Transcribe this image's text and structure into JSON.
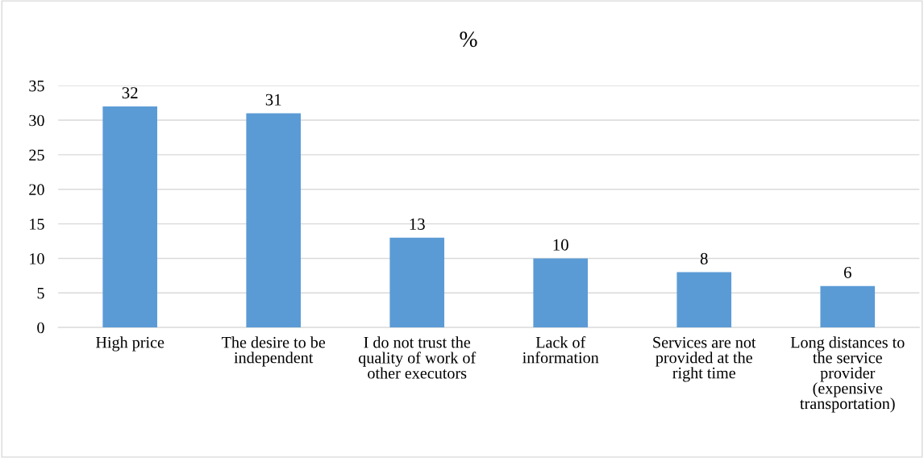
{
  "chart_data": {
    "type": "bar",
    "title": "%",
    "categories": [
      "High price",
      "The desire to be\nindependent",
      "I do not trust the\nquality of work of\nother executors",
      "Lack of\ninformation",
      "Services are not\nprovided at the\nright time",
      "Long distances to\nthe service\nprovider\n(expensive\ntransportation)"
    ],
    "values": [
      32,
      31,
      13,
      10,
      8,
      6
    ],
    "color": "#5b9bd5",
    "ylim": [
      0,
      35
    ],
    "yticks": [
      0,
      5,
      10,
      15,
      20,
      25,
      30,
      35
    ],
    "grid": "y",
    "data_labels": true
  }
}
